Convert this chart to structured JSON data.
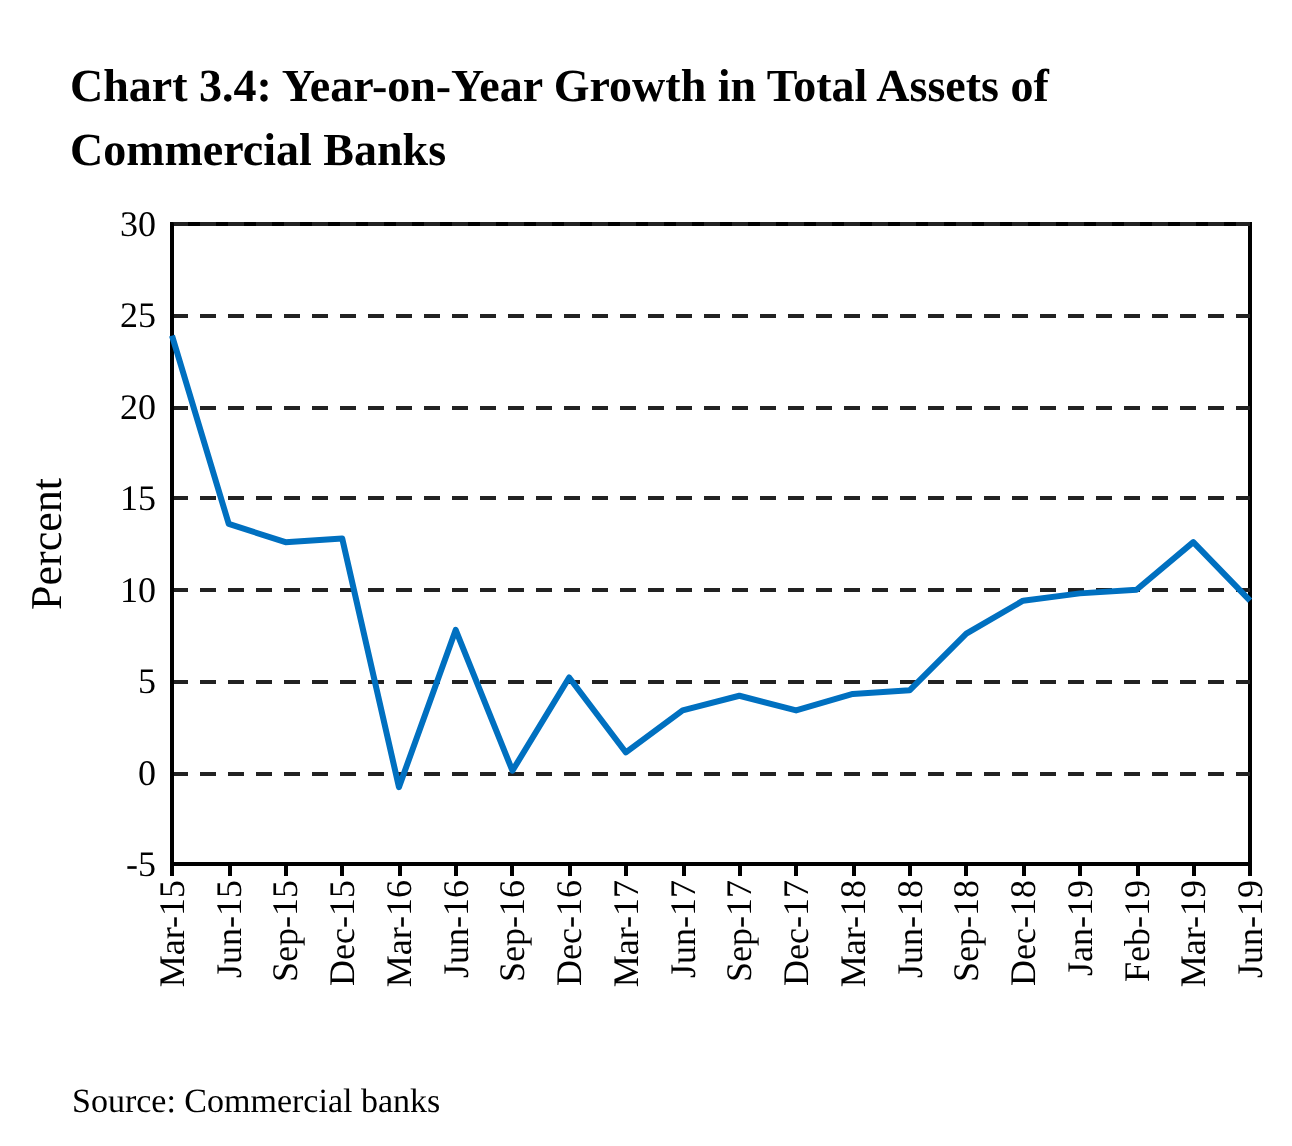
{
  "chart_data": {
    "type": "line",
    "title": "Chart 3.4: Year-on-Year Growth in Total Assets of Commercial Banks",
    "ylabel": "Percent",
    "categories": [
      "Mar-15",
      "Jun-15",
      "Sep-15",
      "Dec-15",
      "Mar-16",
      "Jun-16",
      "Sep-16",
      "Dec-16",
      "Mar-17",
      "Jun-17",
      "Sep-17",
      "Dec-17",
      "Mar-18",
      "Jun-18",
      "Sep-18",
      "Dec-18",
      "Jan-19",
      "Feb-19",
      "Mar-19",
      "Jun-19"
    ],
    "series": [
      {
        "color": "#0070c0",
        "values": [
          23.9,
          13.6,
          12.6,
          12.8,
          -0.8,
          7.8,
          0.1,
          5.2,
          1.1,
          3.4,
          4.2,
          3.4,
          4.3,
          4.5,
          7.6,
          9.4,
          9.8,
          10.0,
          12.6,
          9.4
        ]
      }
    ],
    "ylim": [
      -5,
      30
    ],
    "yticks": [
      -5,
      0,
      5,
      10,
      15,
      20,
      25,
      30
    ],
    "grid": "y",
    "marker": "none",
    "line_style": "solid",
    "annotations": [
      "Source: Commercial banks"
    ]
  }
}
